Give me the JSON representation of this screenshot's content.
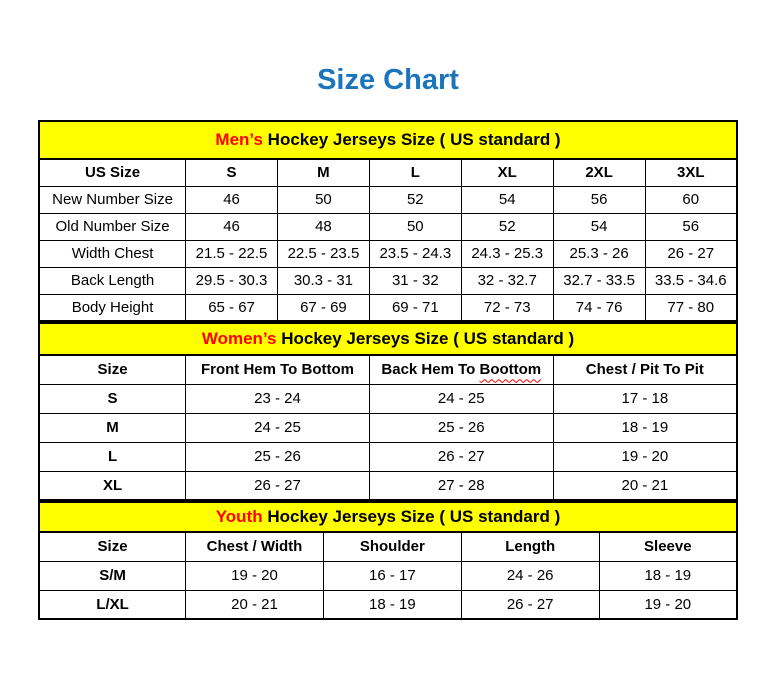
{
  "title": "Size Chart",
  "colors": {
    "title_blue": "#1B75BC",
    "band_yellow": "#FFFF00",
    "accent_red": "#FF0000",
    "border_black": "#000000",
    "text_black": "#000000",
    "background": "#FFFFFF"
  },
  "chart_data": [
    {
      "type": "table",
      "title": "Men’s Hockey Jerseys Size ( US standard )",
      "title_highlight": "Men’s",
      "title_rest": " Hockey Jerseys Size ( US standard )",
      "columns": [
        {
          "text": "US Size"
        },
        {
          "text": "S"
        },
        {
          "text": "M"
        },
        {
          "text": "L"
        },
        {
          "text": "XL"
        },
        {
          "text": "2XL"
        },
        {
          "text": "3XL"
        }
      ],
      "rows": [
        {
          "label": "New Number Size",
          "values": [
            "46",
            "50",
            "52",
            "54",
            "56",
            "60"
          ]
        },
        {
          "label": "Old Number Size",
          "values": [
            "46",
            "48",
            "50",
            "52",
            "54",
            "56"
          ]
        },
        {
          "label": "Width Chest",
          "values": [
            "21.5 - 22.5",
            "22.5 - 23.5",
            "23.5 - 24.3",
            "24.3 - 25.3",
            "25.3 - 26",
            "26 - 27"
          ]
        },
        {
          "label": "Back Length",
          "values": [
            "29.5 - 30.3",
            "30.3 - 31",
            "31 - 32",
            "32 - 32.7",
            "32.7 - 33.5",
            "33.5 - 34.6"
          ]
        },
        {
          "label": "Body Height",
          "values": [
            "65 - 67",
            "67 - 69",
            "69 - 71",
            "72 - 73",
            "74 - 76",
            "77 - 80"
          ]
        }
      ]
    },
    {
      "type": "table",
      "title": "Women’s Hockey Jerseys Size ( US standard )",
      "title_highlight": "Women’s",
      "title_rest": " Hockey Jerseys Size ( US standard )",
      "columns": [
        {
          "text": "Size"
        },
        {
          "text": "Front Hem To Bottom"
        },
        {
          "text": "Back Hem To ",
          "squiggle": "Boottom"
        },
        {
          "text": "Chest / Pit To Pit"
        }
      ],
      "rows": [
        {
          "label": "S",
          "values": [
            "23 - 24",
            "24 - 25",
            "17 - 18"
          ]
        },
        {
          "label": "M",
          "values": [
            "24 - 25",
            "25 - 26",
            "18 - 19"
          ]
        },
        {
          "label": "L",
          "values": [
            "25 - 26",
            "26 - 27",
            "19 - 20"
          ]
        },
        {
          "label": "XL",
          "values": [
            "26 - 27",
            "27 - 28",
            "20 - 21"
          ]
        }
      ]
    },
    {
      "type": "table",
      "title": "Youth Hockey Jerseys Size ( US standard )",
      "title_highlight": "Youth",
      "title_rest": " Hockey Jerseys Size ( US standard )",
      "columns": [
        {
          "text": "Size"
        },
        {
          "text": "Chest / Width"
        },
        {
          "text": "Shoulder"
        },
        {
          "text": "Length"
        },
        {
          "text": "Sleeve"
        }
      ],
      "rows": [
        {
          "label": "S/M",
          "values": [
            "19 - 20",
            "16 - 17",
            "24 - 26",
            "18 - 19"
          ]
        },
        {
          "label": "L/XL",
          "values": [
            "20 - 21",
            "18 - 19",
            "26 - 27",
            "19 - 20"
          ]
        }
      ]
    }
  ]
}
